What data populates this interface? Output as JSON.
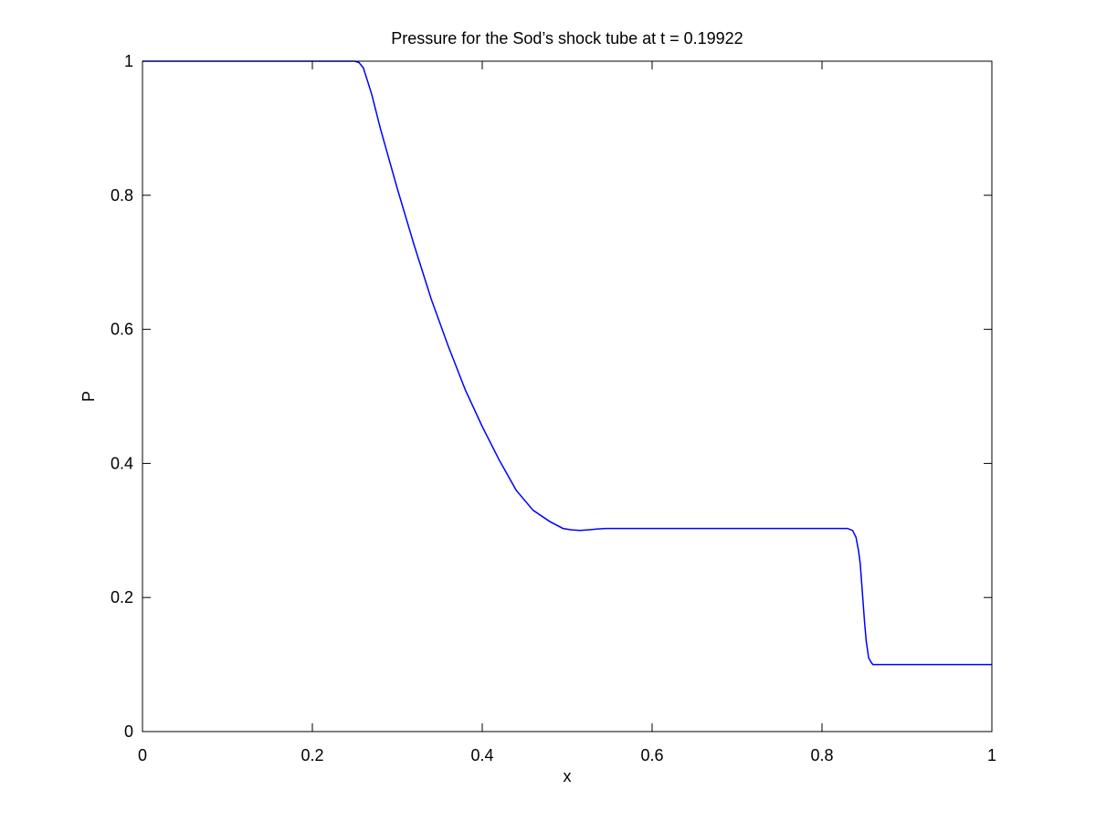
{
  "chart_data": {
    "type": "line",
    "title": "Pressure for the Sod’s shock tube at t = 0.19922",
    "xlabel": "x",
    "ylabel": "P",
    "xlim": [
      0,
      1
    ],
    "ylim": [
      0,
      1
    ],
    "x_ticks": [
      "0",
      "0.2",
      "0.4",
      "0.6",
      "0.8",
      "1"
    ],
    "y_ticks": [
      "0",
      "0.2",
      "0.4",
      "0.6",
      "0.8",
      "1"
    ],
    "grid": false,
    "legend": "none",
    "colors": {
      "series": "#0000ff",
      "axes": "#000000",
      "background": "#ffffff"
    },
    "series": [
      {
        "x": [
          0,
          0.1,
          0.2,
          0.25,
          0.255,
          0.26,
          0.265,
          0.27,
          0.28,
          0.3,
          0.32,
          0.34,
          0.36,
          0.38,
          0.4,
          0.42,
          0.44,
          0.46,
          0.48,
          0.495,
          0.505,
          0.515,
          0.525,
          0.535,
          0.545,
          0.56,
          0.6,
          0.7,
          0.8,
          0.83,
          0.836,
          0.84,
          0.843,
          0.845,
          0.848,
          0.85,
          0.852,
          0.855,
          0.858,
          0.86,
          0.863,
          0.87,
          0.9,
          1.0
        ],
        "values": [
          1.0,
          1.0,
          1.0,
          1.0,
          0.998,
          0.99,
          0.97,
          0.95,
          0.9,
          0.81,
          0.725,
          0.645,
          0.575,
          0.51,
          0.455,
          0.405,
          0.36,
          0.33,
          0.313,
          0.303,
          0.301,
          0.3,
          0.301,
          0.302,
          0.303,
          0.303,
          0.303,
          0.303,
          0.303,
          0.303,
          0.3,
          0.29,
          0.27,
          0.25,
          0.2,
          0.165,
          0.135,
          0.11,
          0.103,
          0.1,
          0.1,
          0.1,
          0.1,
          0.1
        ]
      }
    ]
  }
}
